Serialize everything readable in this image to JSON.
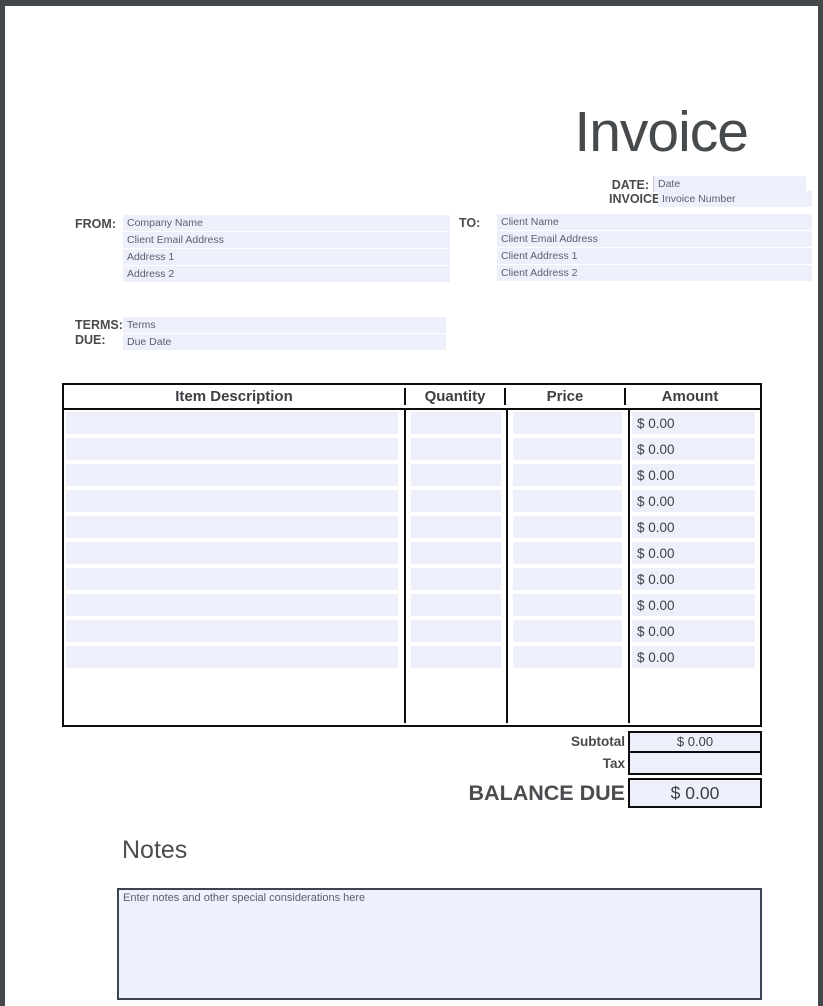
{
  "title": "Invoice",
  "meta": {
    "date_label": "DATE:",
    "date_placeholder": "Date",
    "invoice_label": "INVOICE",
    "invoice_placeholder": "Invoice Number"
  },
  "from": {
    "label": "FROM:",
    "fields": [
      "Company Name",
      "Client Email Address",
      "Address 1",
      "Address 2"
    ]
  },
  "to": {
    "label": "TO:",
    "fields": [
      "Client Name",
      "Client Email Address",
      "Client Address 1",
      "Client Address 2"
    ]
  },
  "terms": {
    "label": "TERMS:",
    "placeholder": "Terms"
  },
  "due": {
    "label": "DUE:",
    "placeholder": "Due Date"
  },
  "table": {
    "headers": [
      "Item Description",
      "Quantity",
      "Price",
      "Amount"
    ],
    "rows": [
      {
        "description": "",
        "quantity": "",
        "price": "",
        "amount": "$ 0.00"
      },
      {
        "description": "",
        "quantity": "",
        "price": "",
        "amount": "$ 0.00"
      },
      {
        "description": "",
        "quantity": "",
        "price": "",
        "amount": "$ 0.00"
      },
      {
        "description": "",
        "quantity": "",
        "price": "",
        "amount": "$ 0.00"
      },
      {
        "description": "",
        "quantity": "",
        "price": "",
        "amount": "$ 0.00"
      },
      {
        "description": "",
        "quantity": "",
        "price": "",
        "amount": "$ 0.00"
      },
      {
        "description": "",
        "quantity": "",
        "price": "",
        "amount": "$ 0.00"
      },
      {
        "description": "",
        "quantity": "",
        "price": "",
        "amount": "$ 0.00"
      },
      {
        "description": "",
        "quantity": "",
        "price": "",
        "amount": "$ 0.00"
      },
      {
        "description": "",
        "quantity": "",
        "price": "",
        "amount": "$ 0.00"
      }
    ]
  },
  "totals": {
    "subtotal_label": "Subtotal",
    "subtotal_value": "$ 0.00",
    "tax_label": "Tax",
    "tax_value": "",
    "balance_label": "BALANCE DUE",
    "balance_value": "$ 0.00"
  },
  "notes": {
    "heading": "Notes",
    "placeholder": "Enter notes and other special considerations here"
  },
  "colors": {
    "field_background": "#edf0fb",
    "table_border": "#0d0d0d",
    "page_frame": "#45484b",
    "text_dark": "#474a4d"
  }
}
